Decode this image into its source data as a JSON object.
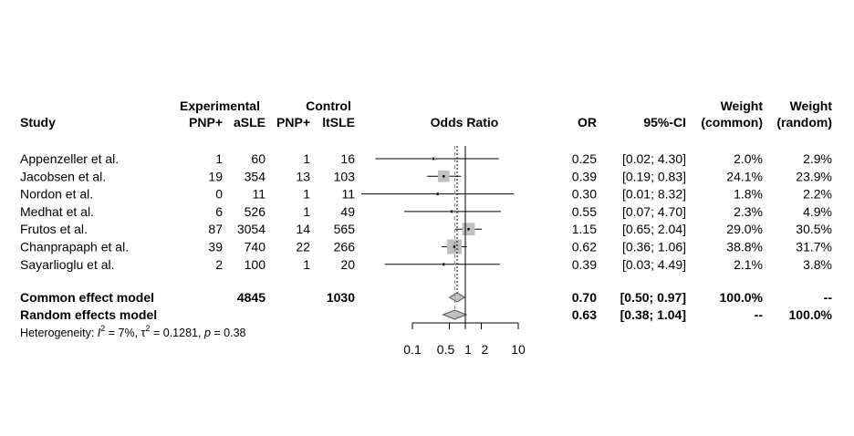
{
  "chart_data": {
    "type": "forest",
    "header": {
      "study": "Study",
      "experimental": "Experimental",
      "control": "Control",
      "exp_events": "PNP+",
      "exp_total": "aSLE",
      "ctrl_events": "PNP+",
      "ctrl_total": "ltSLE",
      "plot_label": "Odds Ratio",
      "or": "OR",
      "ci": "95%-CI",
      "weight_word": "Weight",
      "weight_common": "(common)",
      "weight_random": "(random)"
    },
    "x_scale": "log",
    "xlim": [
      0.1,
      10
    ],
    "ticks": [
      {
        "value": 0.1,
        "label": "0.1"
      },
      {
        "value": 0.5,
        "label": "0.5"
      },
      {
        "value": 1,
        "label": "1"
      },
      {
        "value": 2,
        "label": "2"
      },
      {
        "value": 10,
        "label": "10"
      }
    ],
    "null_value": 1,
    "studies": [
      {
        "name": "Appenzeller et al.",
        "e_events": "1",
        "e_total": "60",
        "c_events": "1",
        "c_total": "16",
        "or": 0.25,
        "lower": 0.02,
        "upper": 4.3,
        "or_text": "0.25",
        "ci_text": "[0.02; 4.30]",
        "w_common": "2.0%",
        "w_random": "2.9%",
        "weight": 2.0
      },
      {
        "name": "Jacobsen et al.",
        "e_events": "19",
        "e_total": "354",
        "c_events": "13",
        "c_total": "103",
        "or": 0.39,
        "lower": 0.19,
        "upper": 0.83,
        "or_text": "0.39",
        "ci_text": "[0.19; 0.83]",
        "w_common": "24.1%",
        "w_random": "23.9%",
        "weight": 24.1
      },
      {
        "name": "Nordon et al.",
        "e_events": "0",
        "e_total": "11",
        "c_events": "1",
        "c_total": "11",
        "or": 0.3,
        "lower": 0.01,
        "upper": 8.32,
        "or_text": "0.30",
        "ci_text": "[0.01; 8.32]",
        "w_common": "1.8%",
        "w_random": "2.2%",
        "weight": 1.8
      },
      {
        "name": "Medhat et al.",
        "e_events": "6",
        "e_total": "526",
        "c_events": "1",
        "c_total": "49",
        "or": 0.55,
        "lower": 0.07,
        "upper": 4.7,
        "or_text": "0.55",
        "ci_text": "[0.07; 4.70]",
        "w_common": "2.3%",
        "w_random": "4.9%",
        "weight": 2.3
      },
      {
        "name": "Frutos et al.",
        "e_events": "87",
        "e_total": "3054",
        "c_events": "14",
        "c_total": "565",
        "or": 1.15,
        "lower": 0.65,
        "upper": 2.04,
        "or_text": "1.15",
        "ci_text": "[0.65; 2.04]",
        "w_common": "29.0%",
        "w_random": "30.5%",
        "weight": 29.0
      },
      {
        "name": "Chanprapaph et al.",
        "e_events": "39",
        "e_total": "740",
        "c_events": "22",
        "c_total": "266",
        "or": 0.62,
        "lower": 0.36,
        "upper": 1.06,
        "or_text": "0.62",
        "ci_text": "[0.36; 1.06]",
        "w_common": "38.8%",
        "w_random": "31.7%",
        "weight": 38.8
      },
      {
        "name": "Sayarlioglu et al.",
        "e_events": "2",
        "e_total": "100",
        "c_events": "1",
        "c_total": "20",
        "or": 0.39,
        "lower": 0.03,
        "upper": 4.49,
        "or_text": "0.39",
        "ci_text": "[0.03; 4.49]",
        "w_common": "2.1%",
        "w_random": "3.8%",
        "weight": 2.1
      }
    ],
    "models": [
      {
        "name": "Common effect model",
        "e_total": "4845",
        "c_total": "1030",
        "or": 0.7,
        "lower": 0.5,
        "upper": 0.97,
        "or_text": "0.70",
        "ci_text": "[0.50; 0.97]",
        "w_common": "100.0%",
        "w_random": "--"
      },
      {
        "name": "Random effects model",
        "e_total": "",
        "c_total": "",
        "or": 0.63,
        "lower": 0.38,
        "upper": 1.04,
        "or_text": "0.63",
        "ci_text": "[0.38; 1.04]",
        "w_common": "--",
        "w_random": "100.0%"
      }
    ],
    "heterogeneity": {
      "prefix": "Heterogeneity: ",
      "i2_symbol": "I",
      "i2_value": " = 7%, ",
      "tau2_symbol": "τ",
      "tau2_value": " = 0.1281, ",
      "p_symbol": "p",
      "p_value": " = 0.38",
      "sup": "2"
    },
    "colors": {
      "square": "#c0c0c0",
      "diamond": "#c0c0c0",
      "line": "#000000",
      "random_line": "#808080"
    }
  }
}
